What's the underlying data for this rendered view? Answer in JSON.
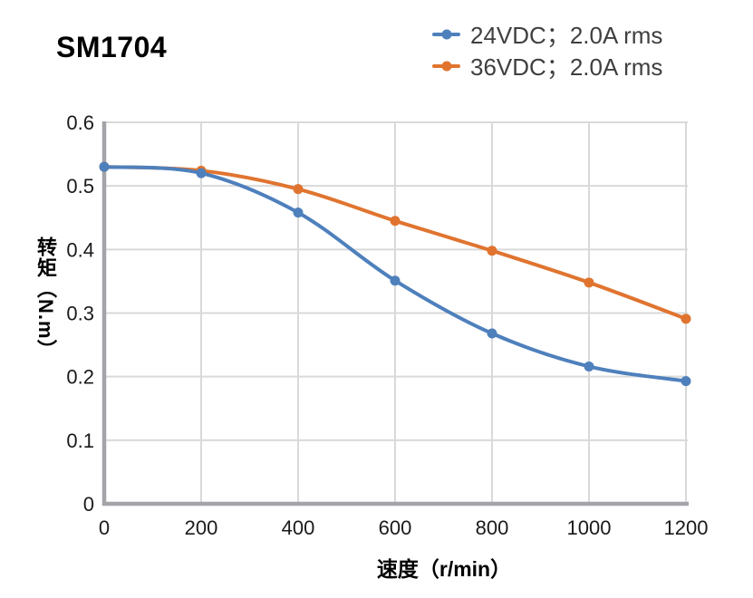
{
  "title": "SM1704",
  "chart_data": {
    "type": "line",
    "title": "SM1704",
    "xlabel": "速度（r/min）",
    "ylabel": "转矩（N.m）",
    "xlim": [
      0,
      1200
    ],
    "ylim": [
      0,
      0.6
    ],
    "x_ticks": [
      "0",
      "200",
      "400",
      "600",
      "800",
      "1000",
      "1200"
    ],
    "y_ticks": [
      "0.6",
      "0.5",
      "0.4",
      "0.3",
      "0.2",
      "0.1",
      "0"
    ],
    "grid": true,
    "smooth": true,
    "legend_position": "top-right",
    "x": [
      0,
      200,
      400,
      600,
      800,
      1000,
      1200
    ],
    "series": [
      {
        "name": "24VDC；2.0A rms",
        "color": "#4e80bc",
        "values": [
          0.53,
          0.52,
          0.458,
          0.351,
          0.268,
          0.216,
          0.193
        ]
      },
      {
        "name": "36VDC；2.0A rms",
        "color": "#e0742f",
        "values": [
          0.53,
          0.524,
          0.495,
          0.445,
          0.398,
          0.348,
          0.291
        ]
      }
    ],
    "style": {
      "axis_color": "#a3a3a8",
      "grid_color": "#d9d9d9",
      "tick_text_color": "#1a1a1a",
      "legend_text_color": "#3f3f3f",
      "line_width": 4,
      "marker_radius": 5.5
    }
  }
}
